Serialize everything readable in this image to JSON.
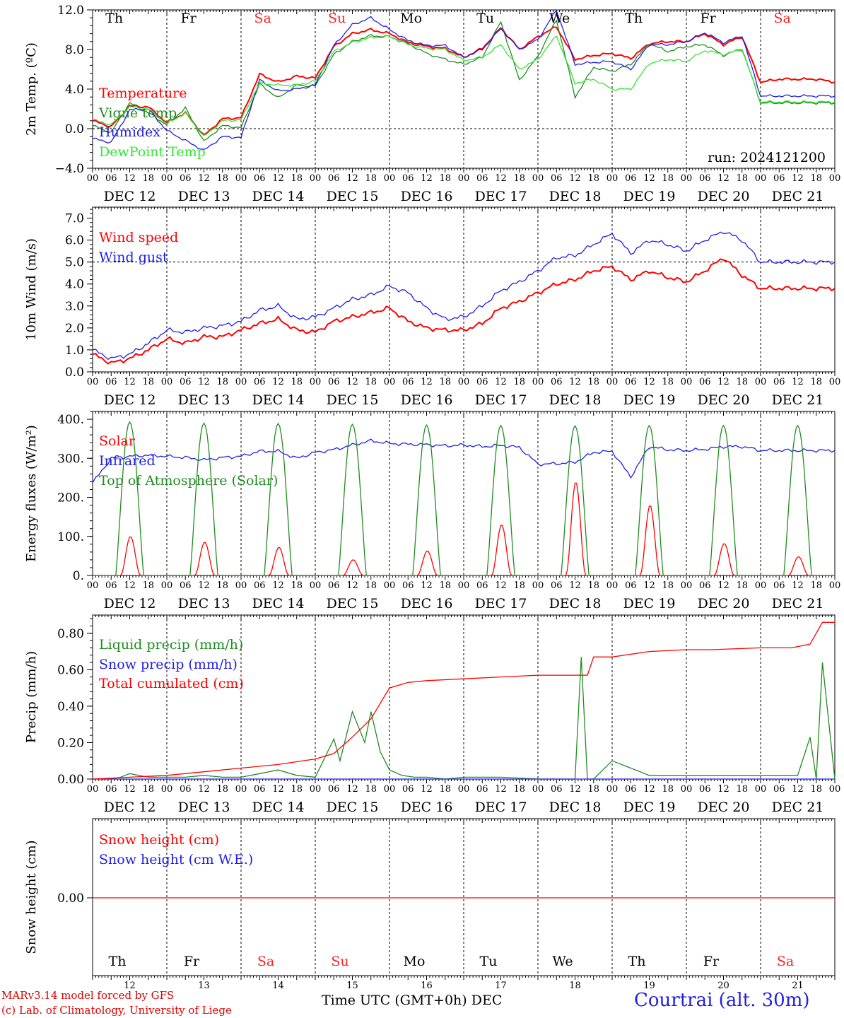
{
  "run_label": "run: 2024121200",
  "footer": {
    "model": "MARv3.14 model forced by GFS",
    "copyright": "(c) Lab. of Climatology, University of Liege",
    "xlabel": "Time UTC (GMT+0h) DEC",
    "station": "Courtrai (alt. 30m)"
  },
  "colors": {
    "red": "#ff0000",
    "green": "#218c21",
    "blue": "#1f1fe6",
    "lightgreen": "#33e633",
    "saturday_sunday": "#ff2020"
  },
  "time_axis": {
    "hour_ticks": [
      "00",
      "06",
      "12",
      "18"
    ],
    "day_labels": [
      "DEC 12",
      "DEC 13",
      "DEC 14",
      "DEC 15",
      "DEC 16",
      "DEC 17",
      "DEC 18",
      "DEC 19",
      "DEC 20",
      "DEC 21"
    ],
    "weekdays": [
      "Th",
      "Fr",
      "Sa",
      "Su",
      "Mo",
      "Tu",
      "We",
      "Th",
      "Fr",
      "Sa"
    ],
    "weekend_days": [
      2,
      3,
      9
    ],
    "day_numbers": [
      "12",
      "13",
      "14",
      "15",
      "16",
      "17",
      "18",
      "19",
      "20",
      "21"
    ],
    "days": 10
  },
  "chart_data": [
    {
      "type": "line",
      "ylabel": "2m Temp. (ºC)",
      "ylim": [
        -4,
        12
      ],
      "yticks": [
        "−4.0",
        "0.0",
        "4.0",
        "8.0",
        "12.0"
      ],
      "ytick_values": [
        -4,
        0,
        4,
        8,
        12
      ],
      "x_unit": "hours since 2024-12-12 00 UTC",
      "series": [
        {
          "name": "Temperature",
          "color": "red",
          "x": [
            0,
            6,
            12,
            18,
            24,
            30,
            36,
            42,
            48,
            54,
            60,
            66,
            72,
            78,
            84,
            90,
            96,
            102,
            108,
            114,
            120,
            126,
            132,
            138,
            144,
            150,
            156,
            162,
            168,
            174,
            180,
            186,
            192,
            198,
            204,
            210,
            216,
            222,
            228,
            234,
            240
          ],
          "values": [
            0.8,
            0.2,
            2.3,
            2.2,
            0.6,
            1.6,
            -0.7,
            1.0,
            1.1,
            5.5,
            4.7,
            5.3,
            5.1,
            8.3,
            9.6,
            10.0,
            9.6,
            8.7,
            8.3,
            8.1,
            7.2,
            8.1,
            10.2,
            8.0,
            9.3,
            10.3,
            7.0,
            7.4,
            7.6,
            7.1,
            8.6,
            8.8,
            8.8,
            9.6,
            8.5,
            9.3,
            4.7,
            5.0,
            5.0,
            5.0,
            4.7
          ]
        },
        {
          "name": "Vigne temp",
          "color": "green",
          "x": [
            0,
            6,
            12,
            18,
            24,
            30,
            36,
            42,
            48,
            54,
            60,
            66,
            72,
            78,
            84,
            90,
            96,
            102,
            108,
            114,
            120,
            126,
            132,
            138,
            144,
            150,
            156,
            162,
            168,
            174,
            180,
            186,
            192,
            198,
            204,
            210,
            216,
            222,
            228,
            234,
            240
          ],
          "values": [
            0.3,
            -0.4,
            2.6,
            1.6,
            0.4,
            2.1,
            -1.3,
            0.3,
            0.1,
            4.5,
            3.1,
            4.4,
            4.3,
            7.5,
            8.8,
            9.4,
            9.3,
            8.6,
            7.6,
            7.0,
            6.5,
            7.2,
            10.8,
            4.9,
            7.3,
            11.0,
            3.2,
            6.2,
            5.8,
            6.5,
            8.6,
            7.8,
            8.3,
            8.5,
            7.4,
            8.1,
            2.6,
            2.6,
            2.6,
            2.6,
            2.6
          ]
        },
        {
          "name": "Humidex",
          "color": "blue",
          "x": [
            0,
            6,
            12,
            18,
            24,
            30,
            36,
            42,
            48,
            54,
            60,
            66,
            72,
            78,
            84,
            90,
            96,
            102,
            108,
            114,
            120,
            126,
            132,
            138,
            144,
            150,
            156,
            162,
            168,
            174,
            180,
            186,
            192,
            198,
            204,
            210,
            216,
            222,
            228,
            234,
            240
          ],
          "values": [
            -1.0,
            -1.4,
            1.9,
            2.0,
            -0.2,
            -1.2,
            -2.2,
            -0.8,
            -0.9,
            4.9,
            3.8,
            4.0,
            4.4,
            8.4,
            10.5,
            11.2,
            10.0,
            8.9,
            8.4,
            8.4,
            7.2,
            8.0,
            10.1,
            8.0,
            9.0,
            12.0,
            6.5,
            6.7,
            6.8,
            6.0,
            8.5,
            8.5,
            8.8,
            9.7,
            8.7,
            9.4,
            3.3,
            3.3,
            3.3,
            3.3,
            3.3
          ]
        },
        {
          "name": "DewPoint Temp",
          "color": "lightgreen",
          "x": [
            0,
            6,
            12,
            18,
            24,
            30,
            36,
            42,
            48,
            54,
            60,
            66,
            72,
            78,
            84,
            90,
            96,
            102,
            108,
            114,
            120,
            126,
            132,
            138,
            144,
            150,
            156,
            162,
            168,
            174,
            180,
            186,
            192,
            198,
            204,
            210,
            216,
            222,
            228,
            234,
            240
          ],
          "values": [
            0.9,
            0.4,
            2.2,
            2.0,
            0.5,
            1.6,
            -0.8,
            0.8,
            0.9,
            4.6,
            4.4,
            4.4,
            4.8,
            7.8,
            8.7,
            9.2,
            9.3,
            8.5,
            8.1,
            8.0,
            6.9,
            7.2,
            8.5,
            6.0,
            7.0,
            9.4,
            4.6,
            5.0,
            4.0,
            4.0,
            6.6,
            7.0,
            6.8,
            7.9,
            7.5,
            8.0,
            2.7,
            2.7,
            2.7,
            2.7,
            2.7
          ]
        }
      ]
    },
    {
      "type": "line",
      "ylabel": "10m Wind (m/s)",
      "ylim": [
        0,
        7.5
      ],
      "yticks": [
        "0.0",
        "1.0",
        "2.0",
        "3.0",
        "4.0",
        "5.0",
        "6.0",
        "7.0"
      ],
      "ytick_values": [
        0,
        1,
        2,
        3,
        4,
        5,
        6,
        7
      ],
      "reference_line": 5.0,
      "x_unit": "hours since 2024-12-12 00 UTC",
      "series": [
        {
          "name": "Wind speed",
          "color": "red",
          "x": [
            0,
            6,
            12,
            18,
            24,
            30,
            36,
            42,
            48,
            54,
            60,
            66,
            72,
            78,
            84,
            90,
            96,
            102,
            108,
            114,
            120,
            126,
            132,
            138,
            144,
            150,
            156,
            162,
            168,
            174,
            180,
            186,
            192,
            198,
            204,
            210,
            216,
            222,
            228,
            234,
            240
          ],
          "values": [
            0.8,
            0.4,
            0.6,
            1.0,
            1.5,
            1.3,
            1.6,
            1.6,
            1.9,
            2.2,
            2.4,
            1.9,
            1.8,
            2.3,
            2.5,
            2.7,
            2.9,
            2.3,
            2.0,
            1.9,
            1.9,
            2.2,
            2.9,
            3.2,
            3.6,
            4.0,
            4.2,
            4.6,
            4.8,
            4.2,
            4.6,
            4.3,
            4.1,
            4.6,
            5.2,
            4.4,
            3.8,
            3.8,
            3.8,
            3.8,
            3.8
          ]
        },
        {
          "name": "Wind gust",
          "color": "blue",
          "x": [
            0,
            6,
            12,
            18,
            24,
            30,
            36,
            42,
            48,
            54,
            60,
            66,
            72,
            78,
            84,
            90,
            96,
            102,
            108,
            114,
            120,
            126,
            132,
            138,
            144,
            150,
            156,
            162,
            168,
            174,
            180,
            186,
            192,
            198,
            204,
            210,
            216,
            222,
            228,
            234,
            240
          ],
          "values": [
            1.0,
            0.6,
            0.8,
            1.3,
            1.9,
            1.8,
            2.0,
            2.1,
            2.3,
            2.8,
            3.0,
            2.4,
            2.5,
            2.9,
            3.3,
            3.5,
            3.9,
            3.6,
            2.9,
            2.4,
            2.5,
            3.0,
            3.7,
            4.1,
            4.6,
            5.2,
            5.3,
            5.8,
            6.3,
            5.4,
            6.0,
            5.8,
            5.5,
            6.0,
            6.4,
            6.0,
            5.0,
            5.0,
            5.0,
            5.0,
            5.0
          ]
        }
      ]
    },
    {
      "type": "line",
      "ylabel": "Energy fluxes (W/m²)",
      "ylim": [
        0,
        400
      ],
      "yticks": [
        "0.",
        "100.",
        "200.",
        "300.",
        "400."
      ],
      "ytick_values": [
        0,
        100,
        200,
        300,
        400
      ],
      "x_unit": "hours since 2024-12-12 00 UTC",
      "series": [
        {
          "name": "Solar",
          "color": "red",
          "daily_peaks": [
            100,
            85,
            72,
            40,
            63,
            130,
            240,
            180,
            82,
            48
          ]
        },
        {
          "name": "Infrared",
          "color": "blue",
          "x": [
            0,
            6,
            12,
            18,
            24,
            30,
            36,
            42,
            48,
            54,
            60,
            66,
            72,
            78,
            84,
            90,
            96,
            102,
            108,
            114,
            120,
            126,
            132,
            138,
            144,
            150,
            156,
            162,
            168,
            174,
            180,
            186,
            192,
            198,
            204,
            210,
            216,
            222,
            228,
            234,
            240
          ],
          "values": [
            237,
            300,
            305,
            308,
            305,
            302,
            296,
            302,
            305,
            318,
            318,
            300,
            315,
            322,
            334,
            345,
            338,
            336,
            335,
            332,
            334,
            330,
            333,
            328,
            285,
            286,
            290,
            315,
            318,
            252,
            330,
            322,
            320,
            323,
            330,
            330,
            320,
            320,
            320,
            320,
            320
          ]
        },
        {
          "name": "Top of Atmosphere (Solar)",
          "color": "green",
          "daily_peaks": [
            393,
            390,
            389,
            387,
            385,
            384,
            383,
            384,
            384,
            384
          ]
        }
      ]
    },
    {
      "type": "line",
      "ylabel": "Precip (mm/h)",
      "ylim": [
        0,
        0.9
      ],
      "yticks": [
        "0.00",
        "0.20",
        "0.40",
        "0.60",
        "0.80"
      ],
      "ytick_values": [
        0,
        0.2,
        0.4,
        0.6,
        0.8
      ],
      "x_unit": "hours since 2024-12-12 00 UTC",
      "series": [
        {
          "name": "Liquid precip (mm/h)",
          "color": "green",
          "x": [
            0,
            6,
            9,
            12,
            18,
            24,
            30,
            36,
            42,
            48,
            54,
            60,
            66,
            72,
            78,
            80,
            84,
            88,
            90,
            93,
            96,
            100,
            104,
            108,
            114,
            120,
            132,
            144,
            156,
            158,
            160,
            162,
            168,
            180,
            216,
            228,
            232,
            234,
            236,
            240
          ],
          "values": [
            0,
            0,
            0.01,
            0.03,
            0.01,
            0.01,
            0.01,
            0.02,
            0.01,
            0.01,
            0.03,
            0.05,
            0.02,
            0.01,
            0.22,
            0.1,
            0.37,
            0.2,
            0.37,
            0.15,
            0.05,
            0.02,
            0.01,
            0.01,
            0,
            0.01,
            0.01,
            0,
            0,
            0.67,
            0,
            0,
            0.1,
            0.02,
            0.02,
            0.02,
            0.23,
            0,
            0.64,
            0
          ]
        },
        {
          "name": "Snow precip (mm/h)",
          "color": "blue",
          "x": [
            0,
            240
          ],
          "values": [
            0,
            0
          ]
        },
        {
          "name": "Total cumulated (cm)",
          "color": "red",
          "x": [
            0,
            12,
            24,
            36,
            48,
            60,
            72,
            78,
            84,
            90,
            96,
            102,
            108,
            120,
            132,
            144,
            150,
            160,
            162,
            168,
            180,
            192,
            200,
            216,
            226,
            232,
            236,
            240
          ],
          "values": [
            0,
            0.01,
            0.02,
            0.04,
            0.06,
            0.08,
            0.11,
            0.14,
            0.23,
            0.33,
            0.5,
            0.53,
            0.54,
            0.55,
            0.56,
            0.57,
            0.57,
            0.57,
            0.67,
            0.67,
            0.7,
            0.71,
            0.71,
            0.72,
            0.72,
            0.74,
            0.86,
            0.86
          ]
        }
      ]
    },
    {
      "type": "line",
      "ylabel": "Snow height (cm)",
      "yticks": [
        "0.00"
      ],
      "ytick_values": [
        0
      ],
      "series": [
        {
          "name": "Snow height (cm)",
          "color": "red",
          "x": [
            0,
            240
          ],
          "values": [
            0,
            0
          ]
        },
        {
          "name": "Snow height (cm W.E.)",
          "color": "blue",
          "x": [],
          "values": []
        }
      ]
    }
  ]
}
